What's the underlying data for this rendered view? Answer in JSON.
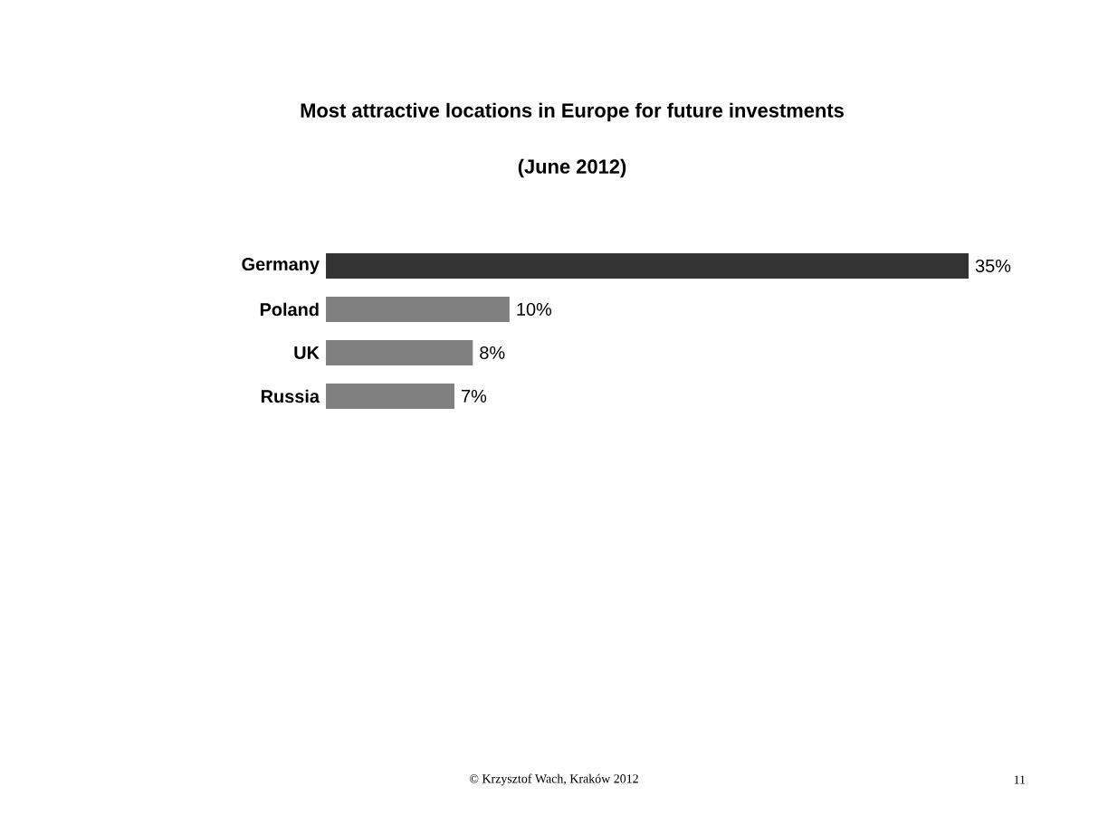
{
  "chart_data": {
    "type": "bar",
    "orientation": "horizontal",
    "title": "Most attractive locations in Europe for future investments",
    "subtitle": "(June 2012)",
    "categories": [
      "Germany",
      "Poland",
      "UK",
      "Russia"
    ],
    "values": [
      35,
      10,
      8,
      7
    ],
    "colors": [
      "#333333",
      "#808080",
      "#808080",
      "#808080"
    ],
    "value_labels": [
      "35%",
      "10%",
      "8%",
      "7%"
    ],
    "annotations": [
      "© Krzysztof Wach, Kraków 2012",
      "11"
    ]
  }
}
